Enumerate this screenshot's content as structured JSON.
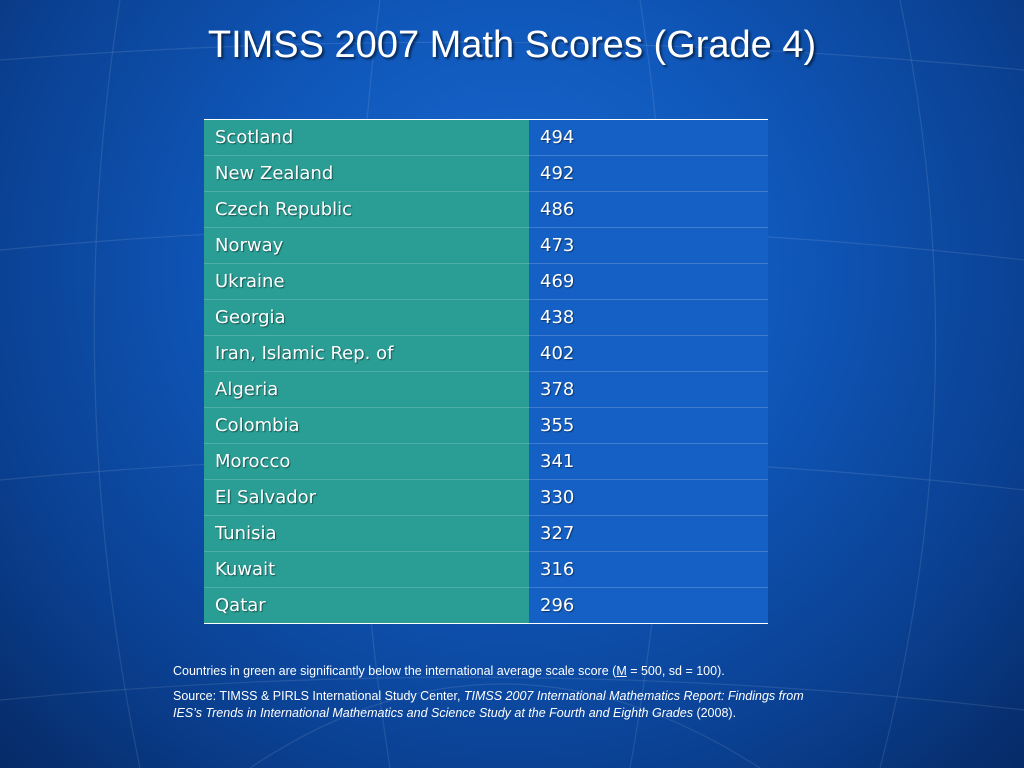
{
  "slide": {
    "title": "TIMSS 2007 Math Scores (Grade 4)"
  },
  "table": {
    "rows": [
      {
        "country": "Scotland",
        "score": "494"
      },
      {
        "country": "New Zealand",
        "score": "492"
      },
      {
        "country": "Czech Republic",
        "score": "486"
      },
      {
        "country": "Norway",
        "score": "473"
      },
      {
        "country": "Ukraine",
        "score": "469"
      },
      {
        "country": "Georgia",
        "score": "438"
      },
      {
        "country": "Iran, Islamic Rep. of",
        "score": "402"
      },
      {
        "country": "Algeria",
        "score": "378"
      },
      {
        "country": "Colombia",
        "score": "355"
      },
      {
        "country": "Morocco",
        "score": "341"
      },
      {
        "country": "El Salvador",
        "score": "330"
      },
      {
        "country": "Tunisia",
        "score": "327"
      },
      {
        "country": "Kuwait",
        "score": "316"
      },
      {
        "country": "Qatar",
        "score": "296"
      }
    ]
  },
  "footnote": {
    "note_before": "Countries in green are significantly below the international average scale score (",
    "note_m": "M",
    "note_after": " = 500, sd = 100).",
    "source_prefix": "Source: TIMSS & PIRLS International Study Center, ",
    "source_title": "TIMSS 2007 International Mathematics Report: Findings from IES’s Trends in International Mathematics and Science Study at the Fourth and Eighth Grades",
    "source_suffix": " (2008)."
  },
  "colors": {
    "country_cell": "#2a9d94",
    "score_cell": "#1560c4",
    "background": "#0f56b8"
  }
}
